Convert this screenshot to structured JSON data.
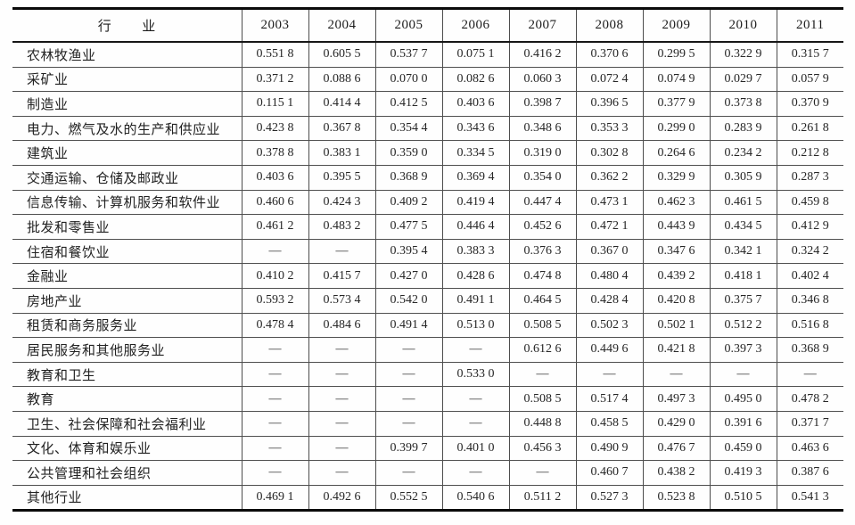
{
  "table": {
    "header": {
      "industry_label": "行        业",
      "years": [
        "2003",
        "2004",
        "2005",
        "2006",
        "2007",
        "2008",
        "2009",
        "2010",
        "2011"
      ]
    },
    "empty_marker": "—",
    "rows": [
      {
        "industry": "农林牧渔业",
        "values": [
          "0.551 8",
          "0.605 5",
          "0.537 7",
          "0.075 1",
          "0.416 2",
          "0.370 6",
          "0.299 5",
          "0.322 9",
          "0.315 7"
        ]
      },
      {
        "industry": "采矿业",
        "values": [
          "0.371 2",
          "0.088 6",
          "0.070 0",
          "0.082 6",
          "0.060 3",
          "0.072 4",
          "0.074 9",
          "0.029 7",
          "0.057 9"
        ]
      },
      {
        "industry": "制造业",
        "values": [
          "0.115 1",
          "0.414 4",
          "0.412 5",
          "0.403 6",
          "0.398 7",
          "0.396 5",
          "0.377 9",
          "0.373 8",
          "0.370 9"
        ]
      },
      {
        "industry": "电力、燃气及水的生产和供应业",
        "values": [
          "0.423 8",
          "0.367 8",
          "0.354 4",
          "0.343 6",
          "0.348 6",
          "0.353 3",
          "0.299 0",
          "0.283 9",
          "0.261 8"
        ]
      },
      {
        "industry": "建筑业",
        "values": [
          "0.378 8",
          "0.383 1",
          "0.359 0",
          "0.334 5",
          "0.319 0",
          "0.302 8",
          "0.264 6",
          "0.234 2",
          "0.212 8"
        ]
      },
      {
        "industry": "交通运输、仓储及邮政业",
        "values": [
          "0.403 6",
          "0.395 5",
          "0.368 9",
          "0.369 4",
          "0.354 0",
          "0.362 2",
          "0.329 9",
          "0.305 9",
          "0.287 3"
        ]
      },
      {
        "industry": "信息传输、计算机服务和软件业",
        "values": [
          "0.460 6",
          "0.424 3",
          "0.409 2",
          "0.419 4",
          "0.447 4",
          "0.473 1",
          "0.462 3",
          "0.461 5",
          "0.459 8"
        ]
      },
      {
        "industry": "批发和零售业",
        "values": [
          "0.461 2",
          "0.483 2",
          "0.477 5",
          "0.446 4",
          "0.452 6",
          "0.472 1",
          "0.443 9",
          "0.434 5",
          "0.412 9"
        ]
      },
      {
        "industry": "住宿和餐饮业",
        "values": [
          "—",
          "—",
          "0.395 4",
          "0.383 3",
          "0.376 3",
          "0.367 0",
          "0.347 6",
          "0.342 1",
          "0.324 2"
        ]
      },
      {
        "industry": "金融业",
        "values": [
          "0.410 2",
          "0.415 7",
          "0.427 0",
          "0.428 6",
          "0.474 8",
          "0.480 4",
          "0.439 2",
          "0.418 1",
          "0.402 4"
        ]
      },
      {
        "industry": "房地产业",
        "values": [
          "0.593 2",
          "0.573 4",
          "0.542 0",
          "0.491 1",
          "0.464 5",
          "0.428 4",
          "0.420 8",
          "0.375 7",
          "0.346 8"
        ]
      },
      {
        "industry": "租赁和商务服务业",
        "values": [
          "0.478 4",
          "0.484 6",
          "0.491 4",
          "0.513 0",
          "0.508 5",
          "0.502 3",
          "0.502 1",
          "0.512 2",
          "0.516 8"
        ]
      },
      {
        "industry": "居民服务和其他服务业",
        "values": [
          "—",
          "—",
          "—",
          "—",
          "0.612 6",
          "0.449 6",
          "0.421 8",
          "0.397 3",
          "0.368 9"
        ]
      },
      {
        "industry": "教育和卫生",
        "values": [
          "—",
          "—",
          "—",
          "0.533 0",
          "—",
          "—",
          "—",
          "—",
          "—"
        ]
      },
      {
        "industry": "教育",
        "values": [
          "—",
          "—",
          "—",
          "—",
          "0.508 5",
          "0.517 4",
          "0.497 3",
          "0.495 0",
          "0.478 2"
        ]
      },
      {
        "industry": "卫生、社会保障和社会福利业",
        "values": [
          "—",
          "—",
          "—",
          "—",
          "0.448 8",
          "0.458 5",
          "0.429 0",
          "0.391 6",
          "0.371 7"
        ]
      },
      {
        "industry": "文化、体育和娱乐业",
        "values": [
          "—",
          "—",
          "0.399 7",
          "0.401 0",
          "0.456 3",
          "0.490 9",
          "0.476 7",
          "0.459 0",
          "0.463 6"
        ]
      },
      {
        "industry": "公共管理和社会组织",
        "values": [
          "—",
          "—",
          "—",
          "—",
          "—",
          "0.460 7",
          "0.438 2",
          "0.419 3",
          "0.387 6"
        ]
      },
      {
        "industry": "其他行业",
        "values": [
          "0.469 1",
          "0.492 6",
          "0.552 5",
          "0.540 6",
          "0.511 2",
          "0.527 3",
          "0.523 8",
          "0.510 5",
          "0.541 3"
        ]
      }
    ]
  }
}
